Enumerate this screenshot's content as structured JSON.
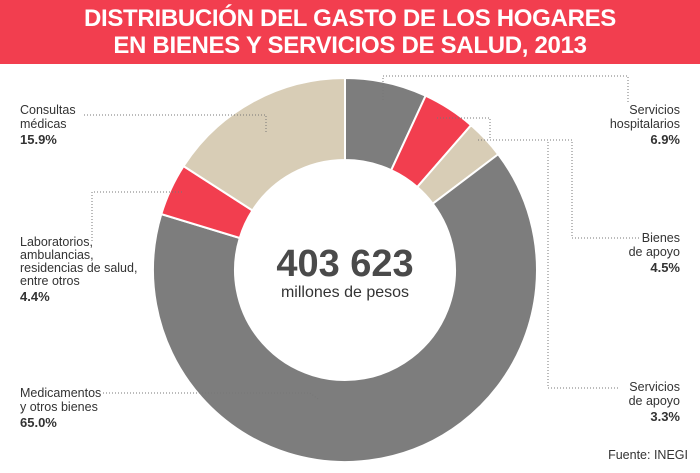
{
  "chart_data": {
    "type": "pie",
    "title": [
      "DISTRIBUCIÓN DEL GASTO DE LOS HOGARES",
      "EN BIENES Y SERVICIOS DE SALUD, 2013"
    ],
    "center_value": "403 623",
    "center_unit": "millones de pesos",
    "source": "Fuente: INEGI",
    "slices": [
      {
        "label": [
          "Servicios",
          "hospitalarios"
        ],
        "pct_label": "6.9%",
        "value": 6.9,
        "color": "#7d7d7d"
      },
      {
        "label": [
          "Bienes",
          "de apoyo"
        ],
        "pct_label": "4.5%",
        "value": 4.5,
        "color": "#f23e4f"
      },
      {
        "label": [
          "Servicios",
          "de apoyo"
        ],
        "pct_label": "3.3%",
        "value": 3.3,
        "color": "#d8cdb6"
      },
      {
        "label": [
          "Medicamentos",
          "y otros bienes"
        ],
        "pct_label": "65.0%",
        "value": 65.0,
        "color": "#7d7d7d"
      },
      {
        "label": [
          "Laboratorios,",
          "ambulancias,",
          "residencias de salud,",
          "entre otros"
        ],
        "pct_label": "4.4%",
        "value": 4.4,
        "color": "#f23e4f"
      },
      {
        "label": [
          "Consultas",
          "médicas"
        ],
        "pct_label": "15.9%",
        "value": 15.9,
        "color": "#d8cdb6"
      }
    ]
  }
}
